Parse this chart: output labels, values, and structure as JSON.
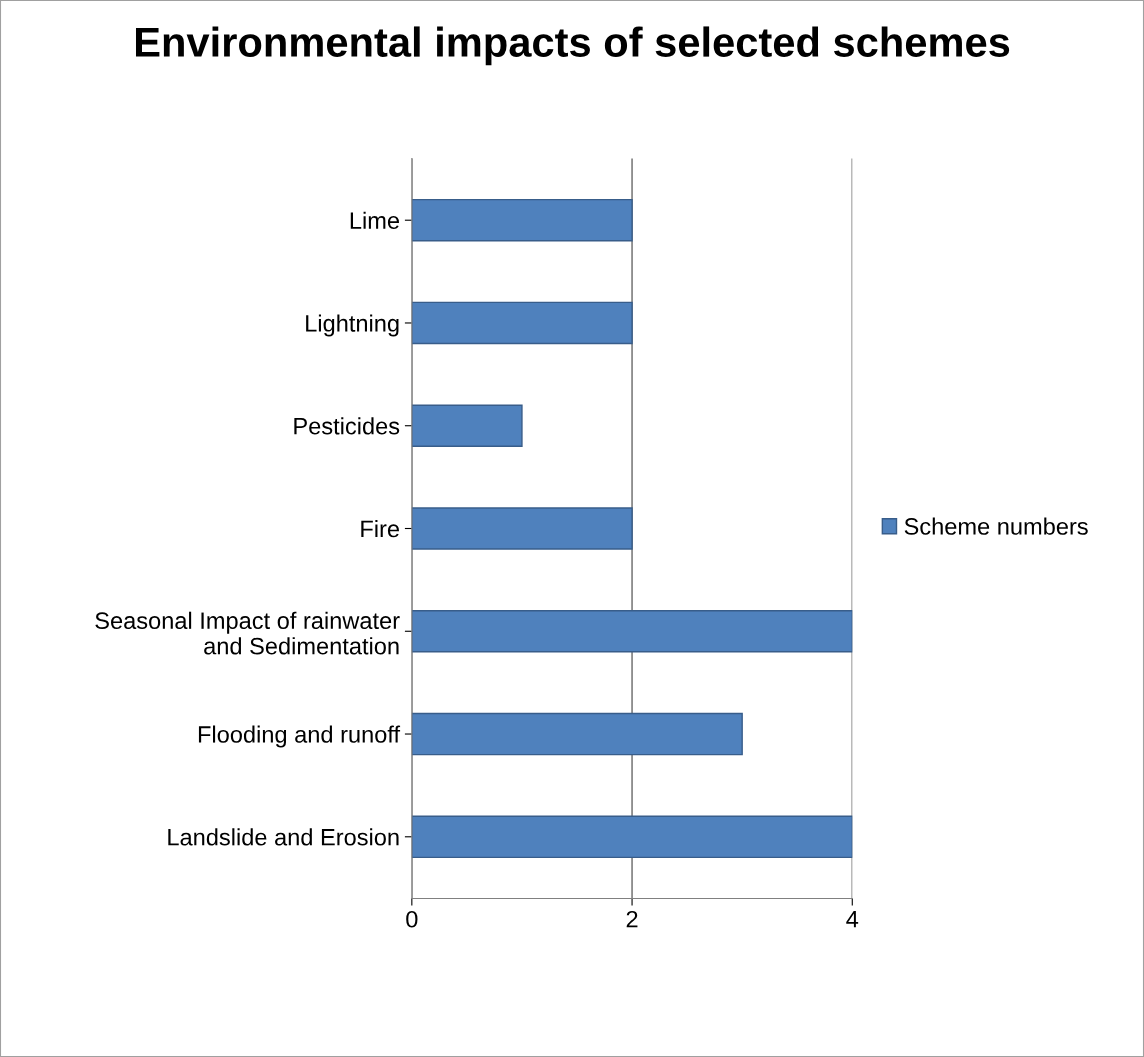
{
  "chart_data": {
    "type": "bar",
    "orientation": "horizontal",
    "title": "Environmental impacts of selected schemes",
    "categories": [
      "Lime",
      "Lightning",
      "Pesticides",
      "Fire",
      "Seasonal Impact of rainwater\nand Sedimentation",
      "Flooding and runoff",
      "Landslide and Erosion"
    ],
    "series": [
      {
        "name": "Scheme numbers",
        "color": "#4f81bd",
        "values": [
          2,
          2,
          1,
          2,
          4,
          3,
          4
        ]
      }
    ],
    "xlim": [
      0,
      4
    ],
    "xticks": [
      0,
      2,
      4
    ],
    "grid": "x",
    "legend": "right"
  }
}
